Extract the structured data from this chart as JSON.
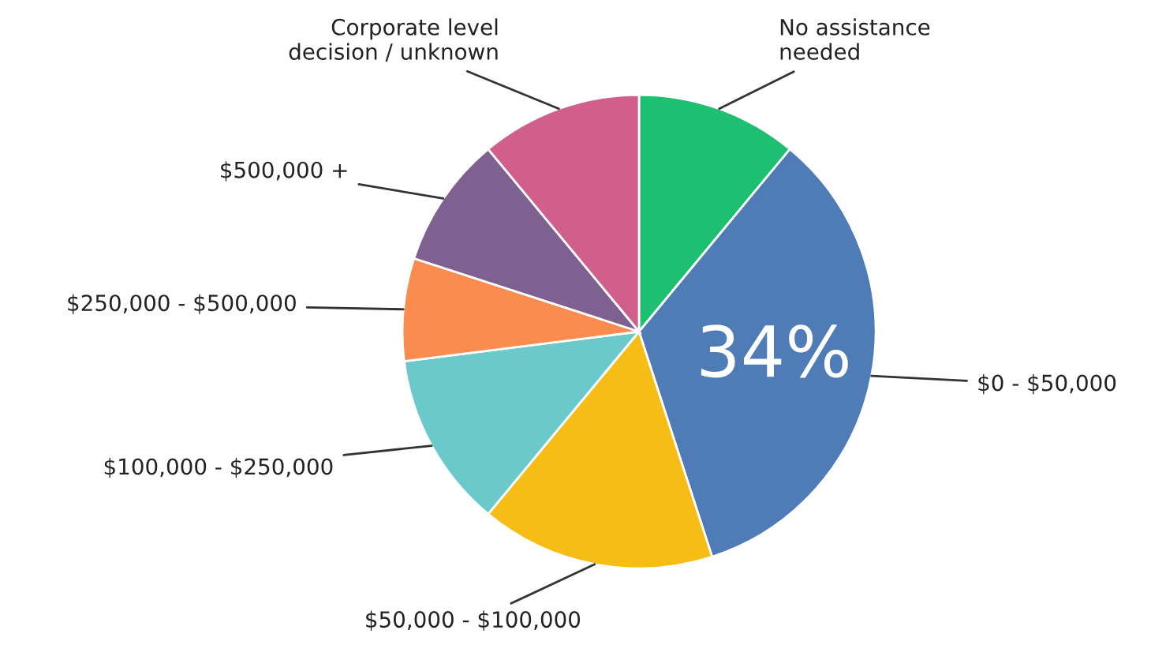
{
  "chart_data": {
    "type": "pie",
    "categories": [
      "No assistance\nneeded",
      "$0 - $50,000",
      "$50,000 - $100,000",
      "$100,000 - $250,000",
      "$250,000 - $500,000",
      "$500,000 +",
      "Corporate level\ndecision / unknown"
    ],
    "values": [
      11,
      34,
      16,
      12,
      7,
      9,
      11
    ],
    "colors": [
      "#1fbf72",
      "#4f7cb7",
      "#f6bd16",
      "#6cc9cb",
      "#fa8c4f",
      "#7e6191",
      "#d05f8e"
    ],
    "value_labels": [
      null,
      "34%",
      null,
      null,
      null,
      null,
      null
    ],
    "legend": false
  }
}
